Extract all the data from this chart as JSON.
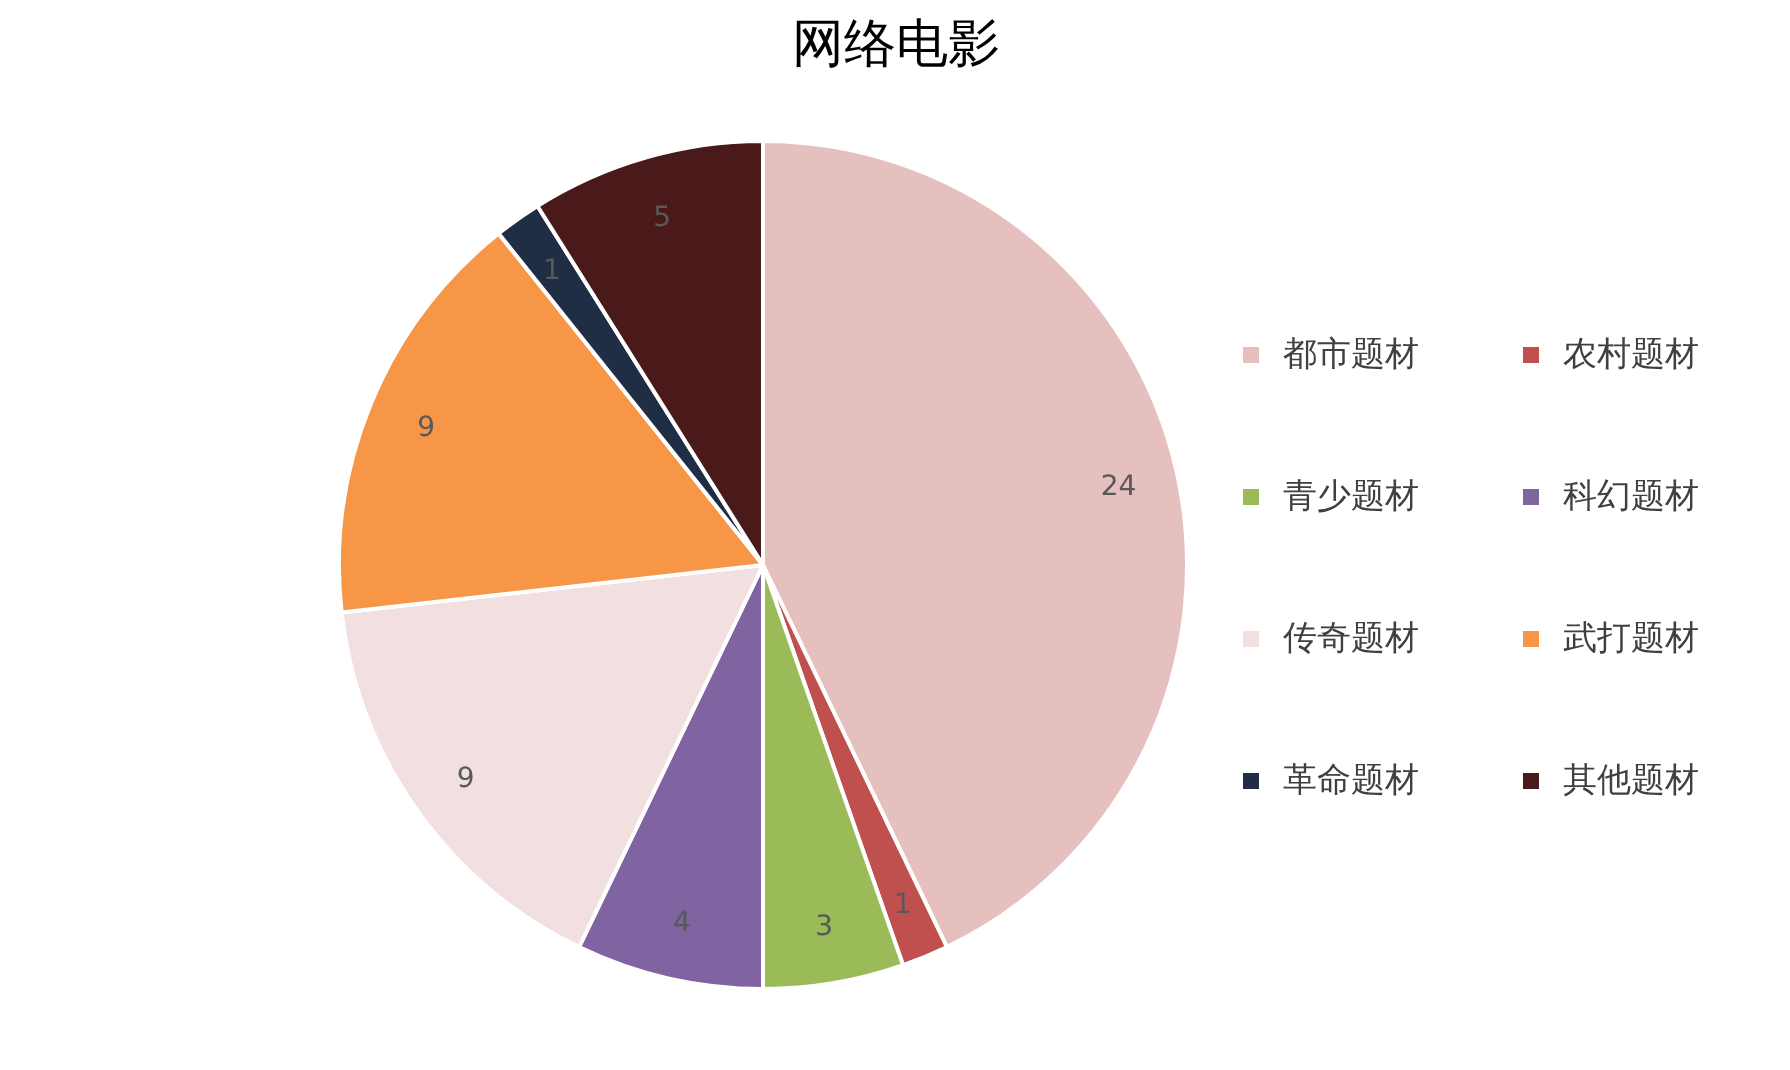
{
  "chart_data": {
    "type": "pie",
    "title": "网络电影",
    "categories": [
      "都市题材",
      "农村题材",
      "青少题材",
      "科幻题材",
      "传奇题材",
      "武打题材",
      "革命题材",
      "其他题材"
    ],
    "values": [
      24,
      1,
      3,
      4,
      9,
      9,
      1,
      5
    ],
    "colors": [
      "#e6bfbf",
      "#c0504d",
      "#9bbb59",
      "#8064a2",
      "#f2e0e0",
      "#f79646",
      "#1f2d45",
      "#4a1a1a"
    ],
    "data_labels": true,
    "legend": "right"
  }
}
